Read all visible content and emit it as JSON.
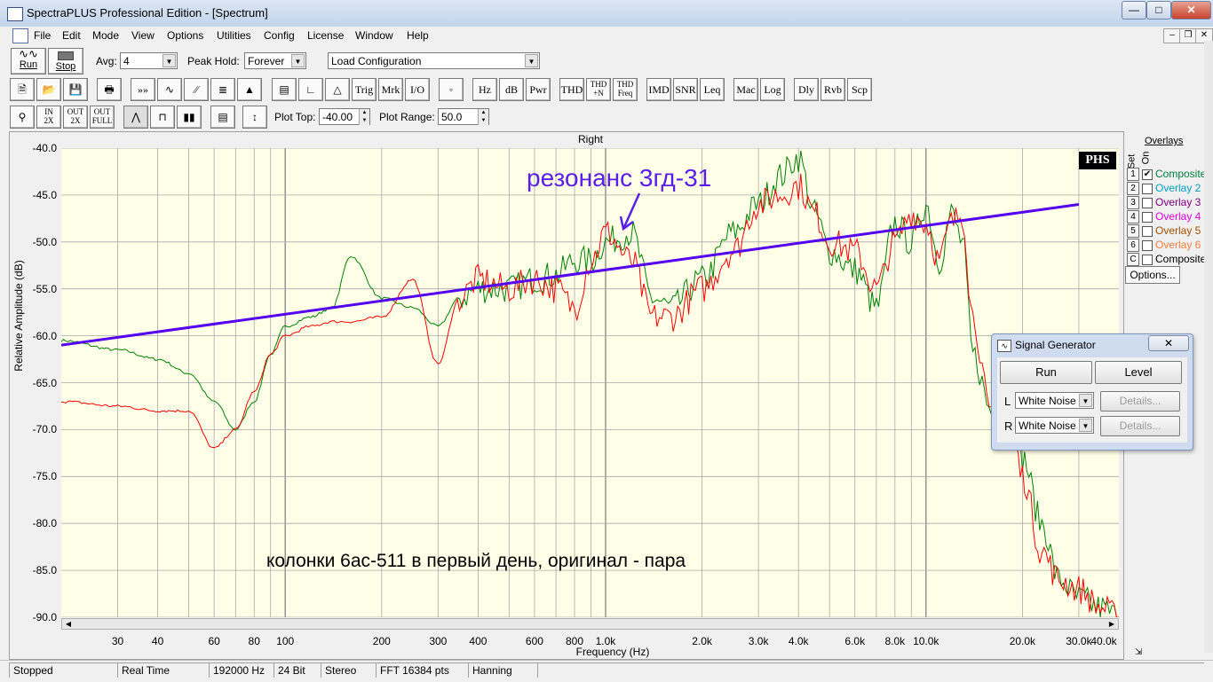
{
  "window": {
    "title": "SpectraPLUS Professional Edition - [Spectrum]"
  },
  "menu": [
    "File",
    "Edit",
    "Mode",
    "View",
    "Options",
    "Utilities",
    "Config",
    "License",
    "Window",
    "Help"
  ],
  "toolbar1": {
    "run_label": "Run",
    "stop_label": "Stop",
    "avg_label": "Avg:",
    "avg_value": "4",
    "peakhold_label": "Peak Hold:",
    "peakhold_value": "Forever",
    "config_value": "Load Configuration"
  },
  "toolbar2": [
    "Trig",
    "Mrk",
    "I/O",
    "Hz",
    "dB",
    "Pwr",
    "THD",
    "THD +N",
    "THD Freq",
    "IMD",
    "SNR",
    "Leq",
    "Mac",
    "Log",
    "Dly",
    "Rvb",
    "Scp"
  ],
  "toolbar3": {
    "plot_top_label": "Plot Top:",
    "plot_top_value": "-40.00",
    "plot_range_label": "Plot Range:",
    "plot_range_value": "50.0"
  },
  "plot": {
    "channel_title": "Right",
    "logo": "PHS",
    "annotation": "резонанс 3гд-31",
    "caption": "колонки 6ас-511 в первый день, оригинал - пара"
  },
  "overlays": {
    "header": "Overlays",
    "set_label": "Set",
    "on_label": "On",
    "options_label": "Options...",
    "items": [
      {
        "num": "1",
        "checked": true,
        "label": "Composite",
        "color": "#008040"
      },
      {
        "num": "2",
        "checked": false,
        "label": "Overlay 2",
        "color": "#00a0c0"
      },
      {
        "num": "3",
        "checked": false,
        "label": "Overlay 3",
        "color": "#800080"
      },
      {
        "num": "4",
        "checked": false,
        "label": "Overlay 4",
        "color": "#e000e0"
      },
      {
        "num": "5",
        "checked": false,
        "label": "Overlay 5",
        "color": "#a05000"
      },
      {
        "num": "6",
        "checked": false,
        "label": "Overlay 6",
        "color": "#f08040"
      },
      {
        "num": "C",
        "checked": false,
        "label": "Composite",
        "color": "#000000"
      }
    ]
  },
  "signal_generator": {
    "title": "Signal Generator",
    "run_label": "Run",
    "level_label": "Level",
    "left_label": "L",
    "left_value": "White Noise",
    "right_label": "R",
    "right_value": "White Noise",
    "details_label": "Details..."
  },
  "status": [
    "Stopped",
    "Real Time",
    "192000 Hz",
    "24 Bit",
    "Stereo",
    "FFT 16384 pts",
    "Hanning"
  ],
  "chart_data": {
    "type": "line",
    "title": "Right",
    "xlabel": "Frequency (Hz)",
    "ylabel": "Relative Amplitude (dB)",
    "xscale": "log",
    "xlim": [
      20,
      40000
    ],
    "ylim": [
      -90,
      -40
    ],
    "xticks": [
      "30",
      "40",
      "60",
      "80",
      "100",
      "200",
      "300",
      "400",
      "600",
      "800",
      "1.0k",
      "2.0k",
      "3.0k",
      "4.0k",
      "6.0k",
      "8.0k",
      "10.0k",
      "20.0k",
      "30.0k",
      "40.0k"
    ],
    "yticks": [
      "-40.0",
      "-45.0",
      "-50.0",
      "-55.0",
      "-60.0",
      "-65.0",
      "-70.0",
      "-75.0",
      "-80.0",
      "-85.0",
      "-90.0"
    ],
    "grid": true,
    "series": [
      {
        "color": "#008000",
        "x": [
          20,
          30,
          40,
          50,
          60,
          70,
          80,
          90,
          100,
          120,
          140,
          160,
          200,
          250,
          300,
          350,
          400,
          500,
          600,
          700,
          800,
          900,
          1000,
          1200,
          1400,
          1600,
          2000,
          2500,
          3000,
          3500,
          4000,
          4500,
          5000,
          6000,
          7000,
          8000,
          9000,
          10000,
          11000,
          12000,
          13000,
          14000,
          16000,
          18000,
          20000,
          23000,
          26000,
          30000,
          35000,
          40000
        ],
        "y": [
          -60.5,
          -61.5,
          -62.5,
          -64,
          -67,
          -70,
          -67,
          -62,
          -59,
          -58,
          -57,
          -51.5,
          -56,
          -57,
          -59,
          -56,
          -55,
          -55,
          -54,
          -53.5,
          -52,
          -52,
          -50,
          -49,
          -56,
          -57,
          -54,
          -49,
          -46,
          -43,
          -41,
          -47,
          -51,
          -53,
          -57,
          -48,
          -50,
          -46,
          -52,
          -47,
          -50,
          -62,
          -68,
          -63,
          -73,
          -80,
          -86,
          -88,
          -89,
          -90
        ]
      },
      {
        "color": "#ff0000",
        "x": [
          20,
          30,
          40,
          50,
          60,
          70,
          80,
          90,
          100,
          120,
          140,
          160,
          200,
          250,
          300,
          350,
          400,
          500,
          600,
          700,
          800,
          900,
          1000,
          1200,
          1400,
          1600,
          2000,
          2500,
          3000,
          3500,
          4000,
          4500,
          5000,
          6000,
          7000,
          8000,
          9000,
          10000,
          11000,
          12000,
          13000,
          14000,
          16000,
          18000,
          20000,
          23000,
          26000,
          30000,
          35000,
          40000
        ],
        "y": [
          -67,
          -67.5,
          -68,
          -68,
          -72,
          -70,
          -66,
          -62,
          -60,
          -59,
          -58.5,
          -58.5,
          -58,
          -54,
          -63,
          -56,
          -54,
          -55,
          -54,
          -55,
          -57,
          -52,
          -49,
          -52,
          -58,
          -58,
          -55,
          -51,
          -46,
          -45,
          -44,
          -47,
          -50,
          -51,
          -55,
          -50,
          -47,
          -48,
          -52,
          -48,
          -47,
          -58,
          -69,
          -66,
          -75,
          -83,
          -86,
          -87,
          -89,
          -90
        ]
      },
      {
        "color": "#5500ee",
        "x": [
          20,
          30000
        ],
        "y": [
          -61,
          -46
        ]
      }
    ]
  }
}
